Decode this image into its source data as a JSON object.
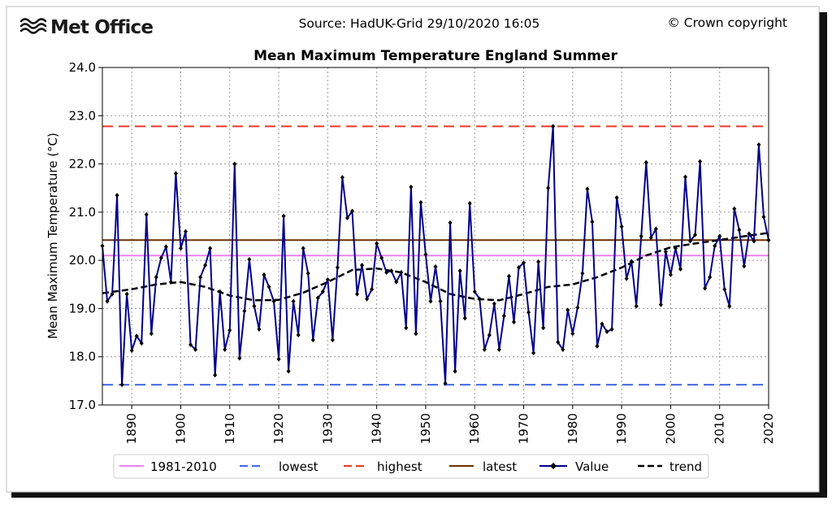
{
  "header": {
    "brand": "Met Office",
    "source": "Source: HadUK-Grid 29/10/2020 16:05",
    "copyright": "© Crown copyright"
  },
  "colors": {
    "value": "#00008b",
    "trend": "#000000",
    "average": "#ee82ee",
    "lowest": "#4169e1",
    "highest": "#e8382f",
    "latest": "#6b3005",
    "grid": "#9a9a9a"
  },
  "chart_data": {
    "type": "line",
    "title": "Mean Maximum Temperature England Summer",
    "xlabel": "",
    "ylabel": "Mean Maximum Temperature (°C)",
    "xlim": [
      1884,
      2020
    ],
    "ylim": [
      17.0,
      24.0
    ],
    "xticks": [
      1890,
      1900,
      1910,
      1920,
      1930,
      1940,
      1950,
      1960,
      1970,
      1980,
      1990,
      2000,
      2010,
      2020
    ],
    "yticks": [
      "17.0",
      "18.0",
      "19.0",
      "20.0",
      "21.0",
      "22.0",
      "23.0",
      "24.0"
    ],
    "grid": true,
    "legend_position": "bottom",
    "legend": [
      "1981-2010",
      "lowest",
      "highest",
      "latest",
      "Value",
      "trend"
    ],
    "reference_lines": {
      "average_1981_2010": 20.1,
      "lowest": 17.42,
      "highest": 22.78,
      "latest": 20.42
    },
    "series": [
      {
        "name": "Value",
        "x_start": 1884,
        "values": [
          20.3,
          19.15,
          19.3,
          21.35,
          17.42,
          19.3,
          18.13,
          18.43,
          18.28,
          20.95,
          18.48,
          19.65,
          20.05,
          20.28,
          19.55,
          21.8,
          20.25,
          20.6,
          18.25,
          18.15,
          19.65,
          19.9,
          20.25,
          17.62,
          19.35,
          18.15,
          18.55,
          22.0,
          17.97,
          18.95,
          20.02,
          19.05,
          18.57,
          19.7,
          19.45,
          19.15,
          17.95,
          20.92,
          17.7,
          19.15,
          18.45,
          20.25,
          19.73,
          18.35,
          19.22,
          19.35,
          19.6,
          18.35,
          19.85,
          21.72,
          20.88,
          21.02,
          19.3,
          19.9,
          19.2,
          19.4,
          20.35,
          20.05,
          19.75,
          19.78,
          19.55,
          19.75,
          18.6,
          21.52,
          18.48,
          21.2,
          20.12,
          19.15,
          19.87,
          19.15,
          17.45,
          20.78,
          17.7,
          19.78,
          18.8,
          21.18,
          19.35,
          19.2,
          18.15,
          18.45,
          19.1,
          18.15,
          18.85,
          19.67,
          18.72,
          19.85,
          19.95,
          18.92,
          18.08,
          19.97,
          18.6,
          21.5,
          22.78,
          18.3,
          18.15,
          18.97,
          18.48,
          19.02,
          19.73,
          21.48,
          20.8,
          18.22,
          18.68,
          18.52,
          18.57,
          21.3,
          20.7,
          19.62,
          19.98,
          19.05,
          20.5,
          22.03,
          20.47,
          20.65,
          19.08,
          20.18,
          19.7,
          20.25,
          19.82,
          21.73,
          20.4,
          20.53,
          22.05,
          19.42,
          19.65,
          20.3,
          20.5,
          19.4,
          19.05,
          21.07,
          20.63,
          19.88,
          20.55,
          20.4,
          22.4,
          20.9,
          20.42
        ]
      },
      {
        "name": "trend",
        "points": [
          [
            1884,
            19.32
          ],
          [
            1890,
            19.4
          ],
          [
            1895,
            19.5
          ],
          [
            1900,
            19.55
          ],
          [
            1905,
            19.45
          ],
          [
            1910,
            19.27
          ],
          [
            1915,
            19.17
          ],
          [
            1920,
            19.18
          ],
          [
            1925,
            19.33
          ],
          [
            1930,
            19.55
          ],
          [
            1935,
            19.8
          ],
          [
            1940,
            19.83
          ],
          [
            1945,
            19.75
          ],
          [
            1950,
            19.55
          ],
          [
            1955,
            19.3
          ],
          [
            1960,
            19.2
          ],
          [
            1965,
            19.17
          ],
          [
            1970,
            19.3
          ],
          [
            1975,
            19.45
          ],
          [
            1980,
            19.5
          ],
          [
            1985,
            19.65
          ],
          [
            1990,
            19.85
          ],
          [
            1995,
            20.1
          ],
          [
            2000,
            20.27
          ],
          [
            2005,
            20.35
          ],
          [
            2010,
            20.42
          ],
          [
            2015,
            20.5
          ],
          [
            2020,
            20.57
          ]
        ]
      }
    ]
  }
}
